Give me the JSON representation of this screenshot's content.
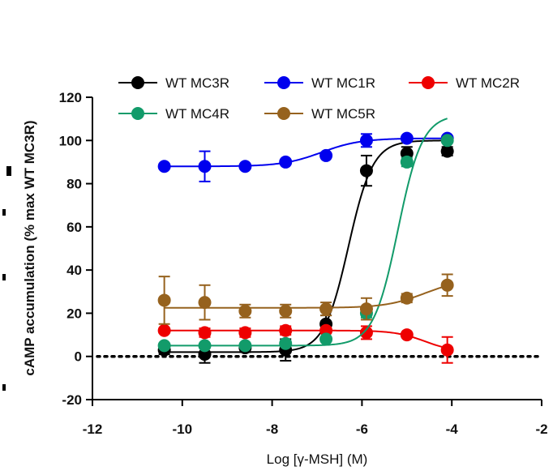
{
  "chart_data": {
    "type": "scatter",
    "title": "",
    "xlabel": "Log [γ-MSH] (M)",
    "ylabel": "cAMP accumulation (% max WT MC3R)",
    "xlim": [
      -12,
      -2
    ],
    "ylim": [
      -20,
      120
    ],
    "xticks": [
      -12,
      -10,
      -8,
      -6,
      -4,
      -2
    ],
    "yticks": [
      -20,
      0,
      20,
      40,
      60,
      80,
      100,
      120
    ],
    "xtick_labels": [
      "-12",
      "-10",
      "-8",
      "-6",
      "-4",
      "-2"
    ],
    "ytick_labels": [
      "-20",
      "0",
      "20",
      "40",
      "60",
      "80",
      "100",
      "120"
    ],
    "baseline": 0,
    "legend_position": "top",
    "series": [
      {
        "name": "WT MC3R",
        "color": "#000000",
        "x": [
          -10.4,
          -9.5,
          -8.6,
          -7.7,
          -6.8,
          -5.9,
          -5.0,
          -4.1
        ],
        "y": [
          3,
          1,
          4,
          3,
          15,
          86,
          94,
          95
        ],
        "err": [
          2,
          4,
          2,
          5,
          4,
          7,
          3,
          2
        ],
        "fit": {
          "bottom": 2,
          "top": 100,
          "logEC50": -6.3,
          "hill": 1.6
        }
      },
      {
        "name": "WT MC1R",
        "color": "#0000ee",
        "x": [
          -10.4,
          -9.5,
          -8.6,
          -7.7,
          -6.8,
          -5.9,
          -5.0,
          -4.1
        ],
        "y": [
          88,
          88,
          88,
          90,
          93,
          100,
          101,
          101
        ],
        "err": [
          1,
          7,
          1,
          1,
          1,
          3,
          1,
          1
        ],
        "fit": {
          "bottom": 88,
          "top": 101,
          "logEC50": -6.9,
          "hill": 1.0
        }
      },
      {
        "name": "WT MC2R",
        "color": "#ee0000",
        "x": [
          -10.4,
          -9.5,
          -8.6,
          -7.7,
          -6.8,
          -5.9,
          -5.0,
          -4.1
        ],
        "y": [
          12,
          11,
          11,
          12,
          12,
          11,
          10,
          3
        ],
        "err": [
          1,
          2,
          2,
          2,
          1,
          3,
          1,
          6
        ],
        "fit": {
          "bottom": 12,
          "top": 2,
          "logEC50": -4.6,
          "hill": 1.3
        }
      },
      {
        "name": "WT MC4R",
        "color": "#129b6a",
        "x": [
          -10.4,
          -9.5,
          -8.6,
          -7.7,
          -6.8,
          -5.9,
          -5.0,
          -4.1
        ],
        "y": [
          5,
          5,
          5,
          6,
          8,
          20,
          90,
          100
        ],
        "err": [
          1,
          1,
          1,
          1,
          1,
          2,
          2,
          1
        ],
        "fit": {
          "bottom": 5,
          "top": 112,
          "logEC50": -5.2,
          "hill": 1.6
        }
      },
      {
        "name": "WT MC5R",
        "color": "#96621e",
        "x": [
          -10.4,
          -9.5,
          -8.6,
          -7.7,
          -6.8,
          -5.9,
          -5.0,
          -4.1
        ],
        "y": [
          26,
          25,
          21,
          21,
          22,
          22,
          27,
          33
        ],
        "err": [
          11,
          8,
          3,
          3,
          3,
          5,
          2,
          5
        ],
        "fit": {
          "bottom": 22.5,
          "top": 36,
          "logEC50": -4.6,
          "hill": 1.0
        }
      }
    ]
  }
}
